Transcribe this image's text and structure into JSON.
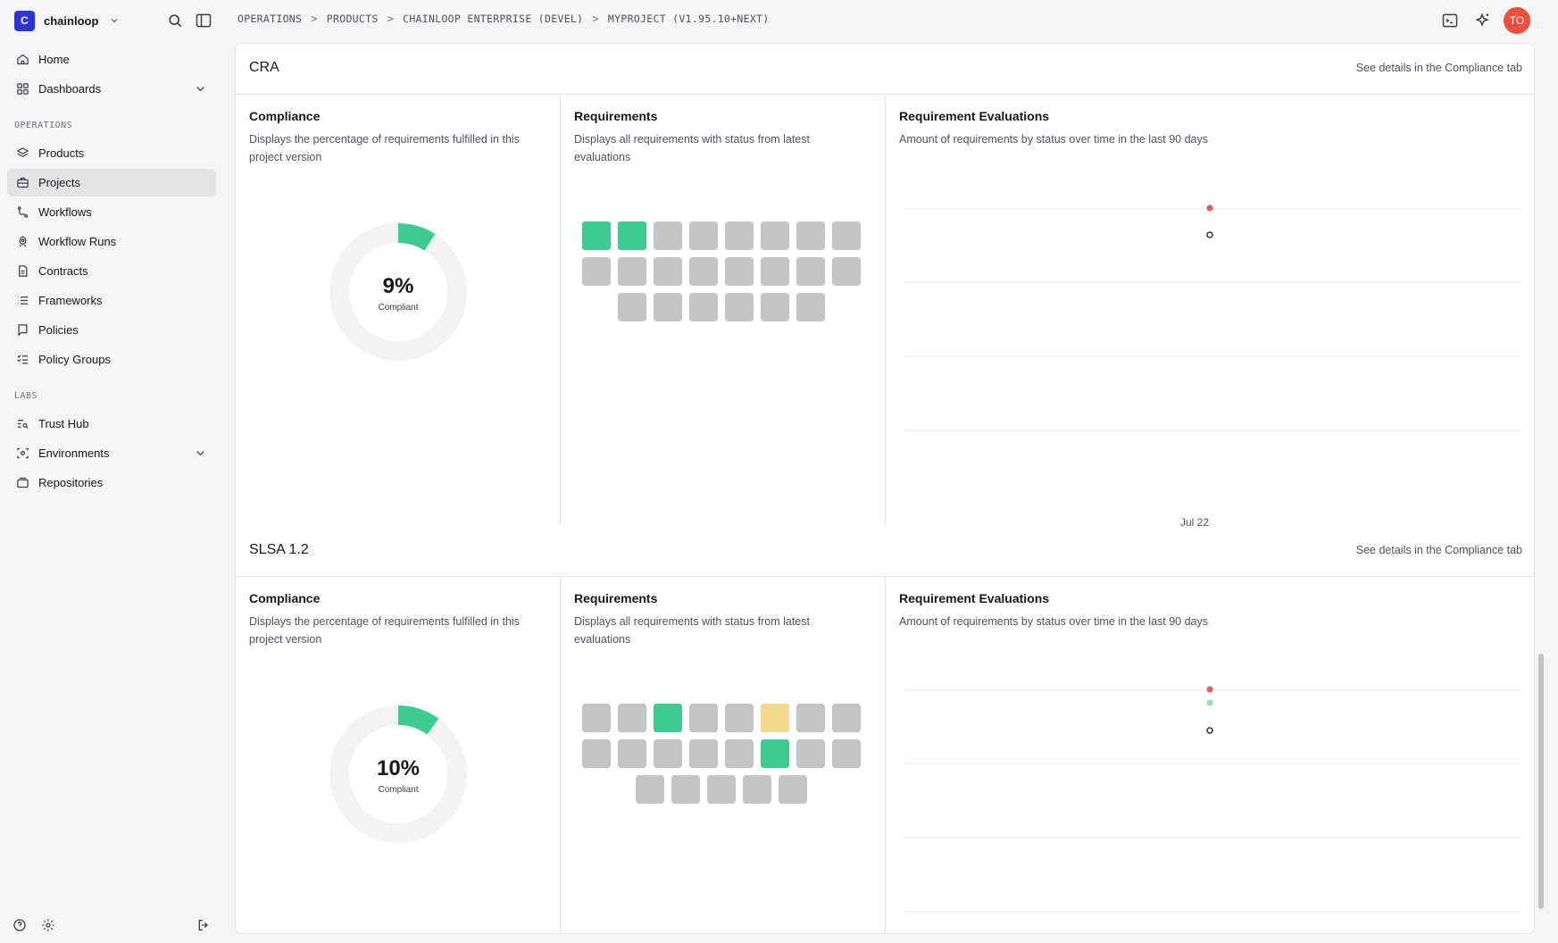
{
  "app": {
    "org_initial": "C",
    "org_name": "chainloop",
    "user_initials": "TO"
  },
  "sidebar": {
    "top_items": [
      {
        "label": "Home",
        "icon": "home-icon"
      },
      {
        "label": "Dashboards",
        "icon": "dashboard-icon"
      }
    ],
    "operations_label": "OPERATIONS",
    "operations_items": [
      {
        "label": "Products",
        "icon": "layers-icon"
      },
      {
        "label": "Projects",
        "icon": "briefcase-icon",
        "active": true
      },
      {
        "label": "Workflows",
        "icon": "workflow-icon"
      },
      {
        "label": "Workflow Runs",
        "icon": "rocket-icon"
      },
      {
        "label": "Contracts",
        "icon": "file-icon"
      },
      {
        "label": "Frameworks",
        "icon": "list-icon"
      },
      {
        "label": "Policies",
        "icon": "policy-icon"
      },
      {
        "label": "Policy Groups",
        "icon": "checklist-icon"
      }
    ],
    "labs_label": "LABS",
    "labs_items": [
      {
        "label": "Trust Hub",
        "icon": "search-list-icon"
      },
      {
        "label": "Environments",
        "icon": "environment-icon"
      },
      {
        "label": "Repositories",
        "icon": "repository-icon"
      }
    ]
  },
  "breadcrumb": [
    "OPERATIONS",
    "PRODUCTS",
    "CHAINLOOP ENTERPRISE (DEVEL)",
    "MYPROJECT (V1.95.10+NEXT)"
  ],
  "colors": {
    "pass": "#3ecb8f",
    "fail": "#ef5b4c",
    "warning": "#f3d88e",
    "none": "#c4c4c4",
    "accent": "#2b34d8"
  },
  "frameworks": [
    {
      "name": "CRA",
      "details_link": "See details in the Compliance tab",
      "compliance": {
        "title": "Compliance",
        "description": "Displays the percentage of requirements fulfilled in this project version",
        "percent": 9,
        "percent_label": "9%",
        "caption": "Compliant"
      },
      "requirements": {
        "title": "Requirements",
        "description": "Displays all requirements with status from latest evaluations",
        "statuses": [
          "pass",
          "pass",
          "none",
          "none",
          "none",
          "none",
          "none",
          "none",
          "none",
          "none",
          "none",
          "none",
          "none",
          "none",
          "none",
          "none",
          "none",
          "none",
          "none",
          "none",
          "none",
          "none"
        ]
      },
      "evaluations": {
        "title": "Requirement Evaluations",
        "description": "Amount of requirements by status over time in the last 90 days",
        "x_label": "Jul 22"
      }
    },
    {
      "name": "SLSA 1.2",
      "details_link": "See details in the Compliance tab",
      "compliance": {
        "title": "Compliance",
        "description": "Displays the percentage of requirements fulfilled in this project version",
        "percent": 10,
        "percent_label": "10%",
        "caption": "Compliant"
      },
      "requirements": {
        "title": "Requirements",
        "description": "Displays all requirements with status from latest evaluations",
        "statuses": [
          "none",
          "none",
          "pass",
          "none",
          "none",
          "warn",
          "none",
          "none",
          "none",
          "none",
          "none",
          "none",
          "none",
          "pass",
          "none",
          "none",
          "none",
          "none",
          "none",
          "none",
          "none"
        ]
      },
      "evaluations": {
        "title": "Requirement Evaluations",
        "description": "Amount of requirements by status over time in the last 90 days",
        "x_label": ""
      }
    }
  ]
}
